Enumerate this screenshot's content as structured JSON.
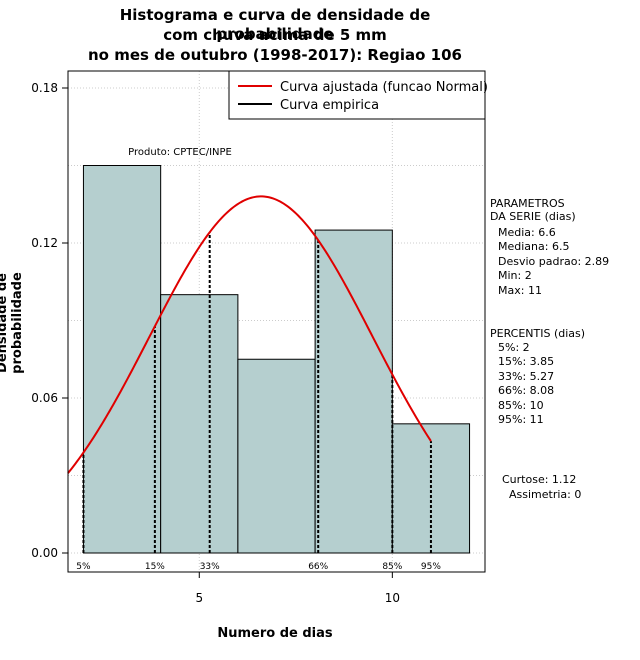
{
  "title": {
    "line1": "Histograma e curva de densidade de probabilidade",
    "line2": "com chuva acima de 5 mm",
    "line3": "no mes de outubro (1998-2017): Regiao 106"
  },
  "product_label": "Produto: CPTEC/INPE",
  "chart_data": {
    "type": "histogram",
    "xlabel": "Numero de dias",
    "ylabel": "Densidade de probabilidade",
    "xlim": [
      1.6,
      12.4
    ],
    "ylim": [
      0,
      0.18
    ],
    "x_ticks": [
      5,
      10
    ],
    "y_ticks": [
      0.0,
      0.06,
      0.12,
      0.18
    ],
    "y_tick_labels": [
      "0.00",
      "0.06",
      "0.12",
      "0.18"
    ],
    "bins": [
      {
        "start": 2,
        "end": 4,
        "density": 0.15
      },
      {
        "start": 4,
        "end": 6,
        "density": 0.1
      },
      {
        "start": 6,
        "end": 8,
        "density": 0.075
      },
      {
        "start": 8,
        "end": 10,
        "density": 0.125
      },
      {
        "start": 10,
        "end": 12,
        "density": 0.05
      }
    ],
    "bar_color": "#b5cfcf",
    "normal_curve": {
      "mean": 6.6,
      "sd": 2.89,
      "xmin": 1.6,
      "xmax": 11,
      "color": "#e00000"
    },
    "percentile_lines": [
      {
        "label": "5%",
        "x": 2
      },
      {
        "label": "15%",
        "x": 3.85
      },
      {
        "label": "33%",
        "x": 5.27
      },
      {
        "label": "66%",
        "x": 8.08
      },
      {
        "label": "85%",
        "x": 10
      },
      {
        "label": "95%",
        "x": 11
      }
    ],
    "legend": {
      "position": "top-right",
      "entries": [
        {
          "label": "Curva ajustada (funcao Normal)",
          "color": "#e00000"
        },
        {
          "label": "Curva empirica",
          "color": "#000000"
        }
      ]
    }
  },
  "parametros": {
    "header1": "PARAMETROS",
    "header2": "DA SERIE (dias)",
    "media": "Media: 6.6",
    "mediana": "Mediana: 6.5",
    "desvio": "Desvio padrao: 2.89",
    "min": "Min: 2",
    "max": "Max: 11"
  },
  "percentis": {
    "header": "PERCENTIS (dias)",
    "p5": "5%: 2",
    "p15": "15%: 3.85",
    "p33": "33%: 5.27",
    "p66": "66%: 8.08",
    "p85": "85%: 10",
    "p95": "95%: 11"
  },
  "stats": {
    "curtose": "Curtose: 1.12",
    "assimetria": "Assimetria: 0"
  }
}
